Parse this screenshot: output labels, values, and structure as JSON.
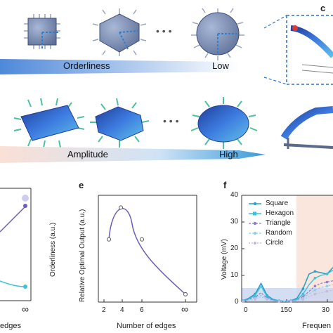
{
  "panel_labels": {
    "c": "c",
    "e": "e",
    "f": "f"
  },
  "top": {
    "orderliness_label": "Orderliness",
    "low_label": "Low",
    "amplitude_label": "Amplitude",
    "high_label": "High",
    "ellipsis": "• • •"
  },
  "colors": {
    "chip_fill": "#7b8fb5",
    "chip_edge": "#3d4e78",
    "beam_blue": "#3a64c8",
    "arrow_blue": "#2f7fd0",
    "line_purple": "#6b5fb8",
    "cyan": "#3ec0d8",
    "highlight_pink": "#fbe6de",
    "band_blue": "#c9d6f0"
  },
  "panel_d": {
    "xlabel": "edges",
    "ylabel": "Orderliness (a.u.)",
    "tick_inf": "∞"
  },
  "chart_data": [
    {
      "type": "line",
      "panel": "e",
      "xlabel": "Number of edges",
      "ylabel": "Relative Optimal Output (a.u.)",
      "x_ticks": [
        "2",
        "4",
        "6",
        "∞"
      ],
      "points": [
        {
          "x": "3",
          "y": 0.6
        },
        {
          "x": "4",
          "y": 0.92
        },
        {
          "x": "6",
          "y": 0.6
        },
        {
          "x": "∞",
          "y": 0.05
        }
      ]
    },
    {
      "type": "line",
      "panel": "f",
      "xlabel": "Frequen",
      "ylabel": "Voltage (mV)",
      "y_ticks": [
        "0",
        "10",
        "20",
        "30",
        "40"
      ],
      "x_ticks": [
        "0",
        "150",
        "30"
      ],
      "ylim": [
        0,
        40
      ],
      "legend": [
        "Square",
        "Hexagon",
        "Triangle",
        "Random",
        "Circle"
      ],
      "series": [
        {
          "name": "Square",
          "values": [
            0.5,
            1.5,
            3.0,
            7.0,
            2.5,
            1.0,
            0.5,
            0.3,
            0.5,
            1.5,
            5.0,
            10.5,
            11.5,
            11.0,
            10.5,
            13.0
          ]
        },
        {
          "name": "Hexagon",
          "values": [
            0.4,
            1.2,
            2.5,
            6.0,
            2.0,
            0.8,
            0.4,
            0.3,
            0.4,
            1.0,
            3.0,
            6.5,
            9.0,
            10.0,
            10.5,
            12.0
          ]
        },
        {
          "name": "Triangle",
          "values": [
            0.3,
            1.0,
            1.8,
            3.5,
            1.5,
            0.6,
            0.3,
            0.2,
            0.3,
            0.8,
            2.0,
            4.0,
            6.0,
            7.0,
            7.5,
            8.0
          ]
        },
        {
          "name": "Random",
          "values": [
            0.3,
            0.8,
            1.5,
            2.5,
            1.2,
            0.5,
            0.3,
            0.2,
            0.3,
            0.6,
            1.5,
            3.0,
            4.5,
            5.5,
            6.0,
            6.5
          ]
        },
        {
          "name": "Circle",
          "values": [
            0.2,
            0.6,
            1.0,
            2.0,
            1.0,
            0.4,
            0.2,
            0.2,
            0.2,
            0.5,
            1.0,
            2.0,
            3.0,
            3.5,
            4.0,
            4.5
          ]
        }
      ]
    }
  ]
}
